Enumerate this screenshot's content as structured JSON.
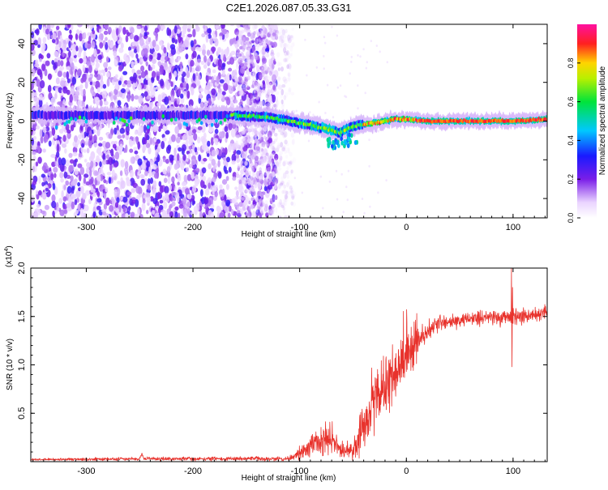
{
  "page_title": "C2E1.2026.087.05.33.G31",
  "colors": {
    "snr_line": "#e8322c",
    "axis": "#000000",
    "background": "#ffffff"
  },
  "chart_data": [
    {
      "type": "heatmap",
      "title": "C2E1.2026.087.05.33.G31",
      "xlabel": "Height of straight line (km)",
      "ylabel": "Frequency (Hz)",
      "xlim": [
        -352,
        132
      ],
      "ylim": [
        -50,
        50
      ],
      "x_ticks": [
        -300,
        -200,
        -100,
        0,
        100
      ],
      "x_tick_labels": [
        "-300",
        "-200",
        "-100",
        "0",
        "100"
      ],
      "y_ticks": [
        -40,
        -20,
        0,
        20,
        40
      ],
      "y_tick_labels": [
        "-40",
        "-20",
        "0",
        "20",
        "40"
      ],
      "colorbar": {
        "label": "Normalized spectral amplitude",
        "range": [
          0,
          1
        ],
        "ticks": [
          0.0,
          0.2,
          0.4,
          0.6,
          0.8
        ],
        "tick_labels": [
          "0.0",
          "0.2",
          "0.4",
          "0.6",
          "0.8"
        ],
        "colormap": "rainbow (white-violet-blue-cyan-green-yellow-red-magenta)"
      },
      "ridge": [
        {
          "x": -160,
          "f": 3
        },
        {
          "x": -130,
          "f": 2
        },
        {
          "x": -110,
          "f": 0
        },
        {
          "x": -90,
          "f": -2
        },
        {
          "x": -75,
          "f": -4
        },
        {
          "x": -62,
          "f": -6
        },
        {
          "x": -55,
          "f": -4
        },
        {
          "x": -45,
          "f": -2
        },
        {
          "x": -30,
          "f": -1
        },
        {
          "x": -10,
          "f": 1
        },
        {
          "x": 0,
          "f": 1
        },
        {
          "x": 20,
          "f": 0
        },
        {
          "x": 60,
          "f": 0
        },
        {
          "x": 100,
          "f": 0
        },
        {
          "x": 132,
          "f": 1
        }
      ]
    },
    {
      "type": "line",
      "xlabel": "Height of straight line (km)",
      "ylabel": "SNR (10 * v/v)",
      "y_multiplier": "(x10",
      "y_multiplier_exp": "4",
      "y_multiplier_close": ")",
      "xlim": [
        -352,
        132
      ],
      "ylim": [
        0,
        2.0
      ],
      "x_ticks": [
        -300,
        -200,
        -100,
        0,
        100
      ],
      "x_tick_labels": [
        "-300",
        "-200",
        "-100",
        "0",
        "100"
      ],
      "y_ticks": [
        0.5,
        1.0,
        1.5,
        2.0
      ],
      "y_tick_labels": [
        "0.5",
        "1.0",
        "1.5",
        "2.0"
      ],
      "series": [
        {
          "name": "SNR",
          "envelope": [
            {
              "x": -352,
              "mean": 0.02,
              "noise": 0.01
            },
            {
              "x": -250,
              "mean": 0.03,
              "noise": 0.015
            },
            {
              "x": -248,
              "mean": 0.08,
              "noise": 0.01
            },
            {
              "x": -246,
              "mean": 0.03,
              "noise": 0.015
            },
            {
              "x": -110,
              "mean": 0.03,
              "noise": 0.02
            },
            {
              "x": -95,
              "mean": 0.12,
              "noise": 0.1
            },
            {
              "x": -80,
              "mean": 0.22,
              "noise": 0.14
            },
            {
              "x": -70,
              "mean": 0.2,
              "noise": 0.12
            },
            {
              "x": -58,
              "mean": 0.1,
              "noise": 0.08
            },
            {
              "x": -50,
              "mean": 0.12,
              "noise": 0.1
            },
            {
              "x": -40,
              "mean": 0.35,
              "noise": 0.2
            },
            {
              "x": -28,
              "mean": 0.7,
              "noise": 0.3
            },
            {
              "x": -15,
              "mean": 0.85,
              "noise": 0.3
            },
            {
              "x": -5,
              "mean": 1.0,
              "noise": 0.25
            },
            {
              "x": 5,
              "mean": 1.15,
              "noise": 0.2
            },
            {
              "x": 15,
              "mean": 1.3,
              "noise": 0.12
            },
            {
              "x": 30,
              "mean": 1.43,
              "noise": 0.07
            },
            {
              "x": 60,
              "mean": 1.48,
              "noise": 0.06
            },
            {
              "x": 98,
              "mean": 1.5,
              "noise": 0.08
            },
            {
              "x": 132,
              "mean": 1.53,
              "noise": 0.07
            }
          ],
          "spikes": [
            {
              "x": 98.5,
              "y": 2.0
            },
            {
              "x": 99.0,
              "y": 0.98
            },
            {
              "x": 99.5,
              "y": 1.8
            }
          ]
        }
      ]
    }
  ]
}
